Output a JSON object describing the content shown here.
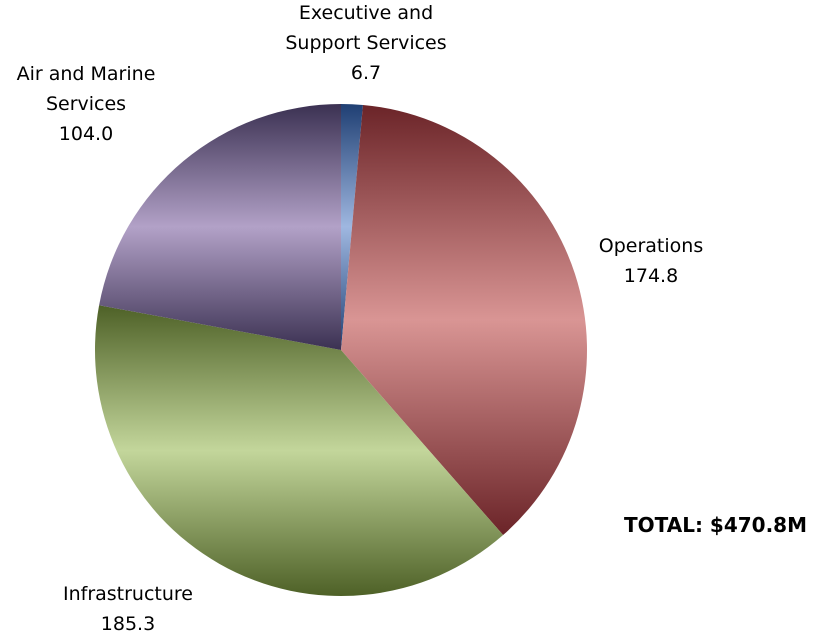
{
  "chart_data": {
    "type": "pie",
    "title": "",
    "total_label": "TOTAL: $470.8M",
    "slices": [
      {
        "name_lines": [
          "Executive and",
          "Support Services"
        ],
        "value_label": "6.7",
        "value": 6.7,
        "color_dark": "#1f3f73",
        "color_light": "#9fb7e0"
      },
      {
        "name_lines": [
          "Operations"
        ],
        "value_label": "174.8",
        "value": 174.8,
        "color_dark": "#6b2428",
        "color_light": "#d99594"
      },
      {
        "name_lines": [
          "Infrastructure"
        ],
        "value_label": "185.3",
        "value": 185.3,
        "color_dark": "#4e6127",
        "color_light": "#c3d69b"
      },
      {
        "name_lines": [
          "Air and Marine",
          "Services"
        ],
        "value_label": "104.0",
        "value": 104.0,
        "color_dark": "#3b3152",
        "color_light": "#b2a1c7"
      }
    ]
  }
}
